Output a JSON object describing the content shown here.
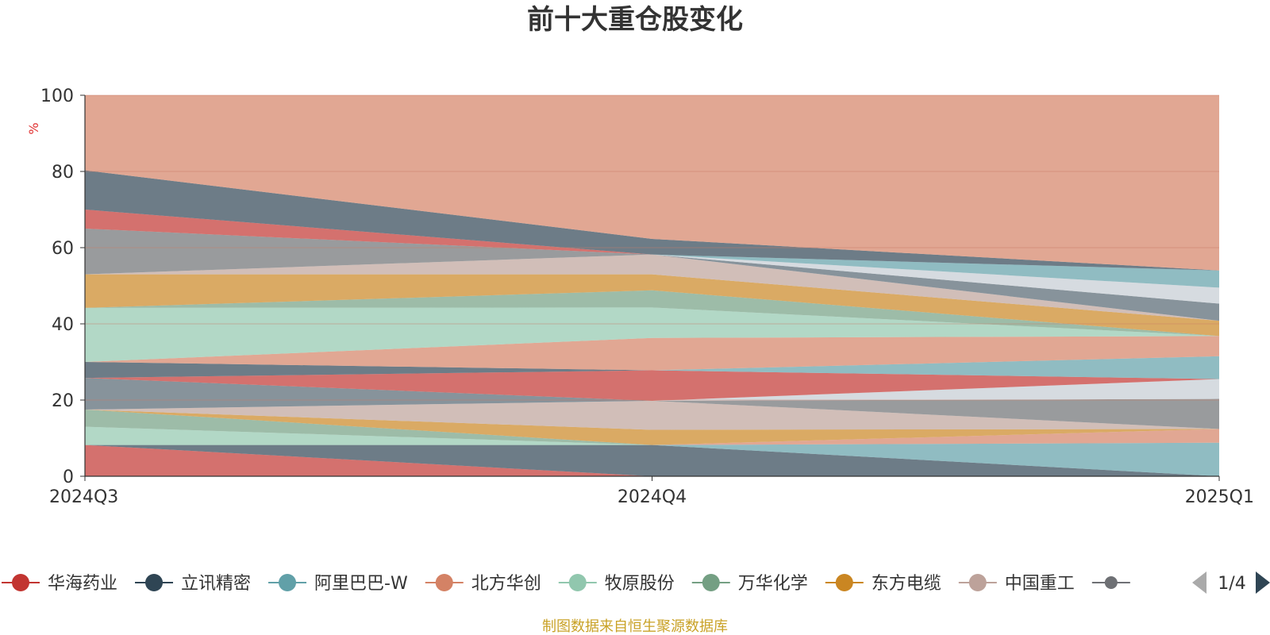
{
  "chart_data": {
    "type": "area",
    "title": "前十大重仓股变化",
    "ylabel": "%",
    "ylim": [
      0,
      100
    ],
    "yticks": [
      0,
      20,
      40,
      60,
      80,
      100
    ],
    "categories": [
      "2024Q3",
      "2024Q4",
      "2025Q1"
    ],
    "grid": true,
    "legend_position": "bottom",
    "visible_series": [
      {
        "name": "华海药业",
        "color": "#c23531"
      },
      {
        "name": "立讯精密",
        "color": "#2f4554"
      },
      {
        "name": "阿里巴巴-W",
        "color": "#61a0a8"
      },
      {
        "name": "北方华创",
        "color": "#d48265"
      },
      {
        "name": "牧原股份",
        "color": "#91c7ae"
      },
      {
        "name": "万华化学",
        "color": "#749f83"
      },
      {
        "name": "东方电缆",
        "color": "#ca8622"
      },
      {
        "name": "中国重工",
        "color": "#bda29a"
      },
      {
        "name": "",
        "color": "#6e7074"
      }
    ],
    "bands": [
      {
        "color": "#c23531",
        "lower": [
          0,
          0,
          0
        ],
        "upper": [
          8.2,
          0,
          0
        ]
      },
      {
        "color": "#2f4554",
        "lower": [
          8.2,
          0,
          0
        ],
        "upper": [
          8.2,
          8.2,
          0
        ]
      },
      {
        "color": "#61a0a8",
        "lower": [
          8.2,
          8.2,
          0
        ],
        "upper": [
          8.2,
          8.2,
          8.8
        ]
      },
      {
        "color": "#d48265",
        "lower": [
          8.2,
          8.2,
          8.8
        ],
        "upper": [
          8.2,
          8.2,
          12.4
        ]
      },
      {
        "color": "#91c7ae",
        "lower": [
          8.2,
          8.2,
          12.4
        ],
        "upper": [
          13.0,
          8.2,
          12.4
        ]
      },
      {
        "color": "#749f83",
        "lower": [
          13.0,
          8.2,
          12.4
        ],
        "upper": [
          17.5,
          8.2,
          12.4
        ]
      },
      {
        "color": "#ca8622",
        "lower": [
          17.5,
          8.2,
          12.4
        ],
        "upper": [
          17.5,
          12.2,
          12.4
        ]
      },
      {
        "color": "#bda29a",
        "lower": [
          17.5,
          12.2,
          12.4
        ],
        "upper": [
          17.5,
          19.8,
          12.4
        ]
      },
      {
        "color": "#6e7074",
        "lower": [
          17.5,
          19.8,
          12.4
        ],
        "upper": [
          17.5,
          19.8,
          20.3
        ]
      },
      {
        "color": "#c4ccd3",
        "lower": [
          17.5,
          19.8,
          20.3
        ],
        "upper": [
          17.5,
          19.8,
          25.5
        ]
      },
      {
        "color": "#546570",
        "lower": [
          17.5,
          19.8,
          25.5
        ],
        "upper": [
          25.8,
          19.8,
          25.5
        ]
      },
      {
        "color": "#c23531",
        "lower": [
          25.8,
          19.8,
          25.5
        ],
        "upper": [
          25.8,
          27.8,
          25.5
        ]
      },
      {
        "color": "#61a0a8",
        "lower": [
          25.8,
          27.8,
          25.5
        ],
        "upper": [
          25.8,
          27.8,
          31.5
        ]
      },
      {
        "color": "#2f4554",
        "lower": [
          25.8,
          27.8,
          31.5
        ],
        "upper": [
          30.0,
          27.8,
          31.5
        ]
      },
      {
        "color": "#d48265",
        "lower": [
          30.0,
          27.8,
          31.5
        ],
        "upper": [
          30.0,
          36.3,
          36.8
        ]
      },
      {
        "color": "#91c7ae",
        "lower": [
          30.0,
          36.3,
          36.8
        ],
        "upper": [
          44.2,
          44.3,
          36.8
        ]
      },
      {
        "color": "#749f83",
        "lower": [
          44.2,
          44.3,
          36.8
        ],
        "upper": [
          44.2,
          48.8,
          36.8
        ]
      },
      {
        "color": "#ca8622",
        "lower": [
          44.2,
          48.8,
          36.8
        ],
        "upper": [
          53.0,
          53.0,
          40.8
        ]
      },
      {
        "color": "#bda29a",
        "lower": [
          53.0,
          53.0,
          40.8
        ],
        "upper": [
          53.0,
          58.2,
          40.8
        ]
      },
      {
        "color": "#546570",
        "lower": [
          53.0,
          58.2,
          40.8
        ],
        "upper": [
          53.0,
          58.2,
          45.3
        ]
      },
      {
        "color": "#c4ccd3",
        "lower": [
          53.0,
          58.2,
          45.3
        ],
        "upper": [
          53.0,
          58.2,
          49.5
        ]
      },
      {
        "color": "#6e7074",
        "lower": [
          53.0,
          58.2,
          49.5
        ],
        "upper": [
          65.0,
          58.2,
          49.5
        ]
      },
      {
        "color": "#c23531",
        "lower": [
          65.0,
          58.2,
          49.5
        ],
        "upper": [
          70.0,
          58.2,
          49.5
        ]
      },
      {
        "color": "#61a0a8",
        "lower": [
          70.0,
          58.2,
          49.5
        ],
        "upper": [
          70.0,
          58.2,
          54.0
        ]
      },
      {
        "color": "#2f4554",
        "lower": [
          70.0,
          58.2,
          54.0
        ],
        "upper": [
          80.3,
          62.3,
          54.0
        ]
      },
      {
        "color": "#d48265",
        "lower": [
          80.3,
          62.3,
          54.0
        ],
        "upper": [
          100,
          100,
          100
        ]
      }
    ]
  },
  "legend": {
    "page_indicator": "1/4"
  },
  "source_note": "制图数据来自恒生聚源数据库",
  "colors": {
    "title": "#333333",
    "axis": "#333333",
    "unit_label": "#e03030",
    "source_note": "#c9a227",
    "grid": "#c87a66",
    "pager_active": "#2f4554",
    "pager_inactive": "#aaaaaa"
  }
}
